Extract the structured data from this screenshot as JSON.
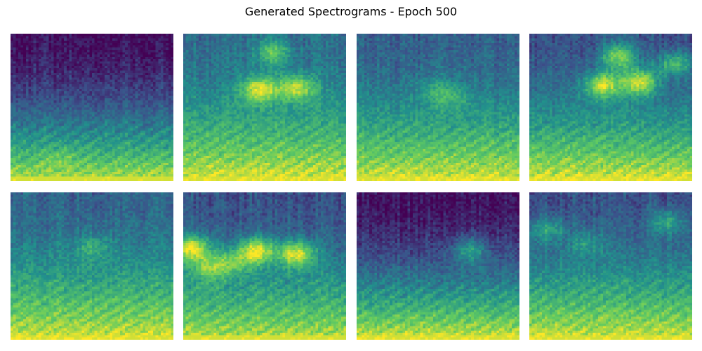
{
  "title": "Generated Spectrograms - Epoch 500",
  "chart_data": {
    "type": "heatmap",
    "title": "Generated Spectrograms - Epoch 500",
    "layout": "2 rows x 4 columns",
    "axes_visible": false,
    "colormap": "viridis",
    "colormap_stops": [
      "#440154",
      "#3b528b",
      "#21918c",
      "#5ec962",
      "#fde725"
    ],
    "grid": false,
    "legend": "none",
    "num_images": 8,
    "resolution": {
      "freq_bins": 64,
      "time_frames": 64
    },
    "value_range": [
      0,
      1
    ],
    "images": [
      {
        "index": 1,
        "description_of_pattern": "dark upper region, brightening toward bottom band",
        "top_level": 0.05,
        "bottom_level": 0.9,
        "hotspots": [
          [
            0.3,
            0.9,
            0.8
          ]
        ]
      },
      {
        "index": 2,
        "description_of_pattern": "green with bright blobs mid-upper",
        "top_level": 0.35,
        "bottom_level": 0.95,
        "hotspots": [
          [
            0.47,
            0.38,
            1.0
          ],
          [
            0.7,
            0.37,
            0.95
          ],
          [
            0.55,
            0.12,
            0.75
          ]
        ]
      },
      {
        "index": 3,
        "description_of_pattern": "teal uniform, faint vertical streaks",
        "top_level": 0.3,
        "bottom_level": 0.95,
        "hotspots": [
          [
            0.5,
            0.4,
            0.6
          ],
          [
            0.6,
            0.45,
            0.6
          ]
        ]
      },
      {
        "index": 4,
        "description_of_pattern": "dark top with bright blobs in middle",
        "top_level": 0.25,
        "bottom_level": 0.95,
        "hotspots": [
          [
            0.45,
            0.35,
            0.95
          ],
          [
            0.68,
            0.33,
            0.95
          ],
          [
            0.55,
            0.15,
            0.8
          ],
          [
            0.9,
            0.2,
            0.7
          ]
        ]
      },
      {
        "index": 5,
        "description_of_pattern": "teal top, faint mid features",
        "top_level": 0.32,
        "bottom_level": 0.95,
        "hotspots": [
          [
            0.5,
            0.38,
            0.65
          ]
        ]
      },
      {
        "index": 6,
        "description_of_pattern": "dark blue with strong bright blobs",
        "top_level": 0.25,
        "bottom_level": 0.9,
        "hotspots": [
          [
            0.05,
            0.38,
            1.0
          ],
          [
            0.45,
            0.4,
            1.0
          ],
          [
            0.7,
            0.42,
            1.0
          ],
          [
            0.15,
            0.52,
            0.8
          ],
          [
            0.3,
            0.48,
            0.75
          ]
        ]
      },
      {
        "index": 7,
        "description_of_pattern": "very dark top, green bottom",
        "top_level": 0.05,
        "bottom_level": 0.95,
        "hotspots": [
          [
            0.7,
            0.4,
            0.55
          ]
        ]
      },
      {
        "index": 8,
        "description_of_pattern": "dark blue-teal with horizontal streaks",
        "top_level": 0.25,
        "bottom_level": 0.95,
        "hotspots": [
          [
            0.1,
            0.25,
            0.6
          ],
          [
            0.35,
            0.35,
            0.55
          ],
          [
            0.85,
            0.2,
            0.6
          ]
        ]
      }
    ]
  }
}
